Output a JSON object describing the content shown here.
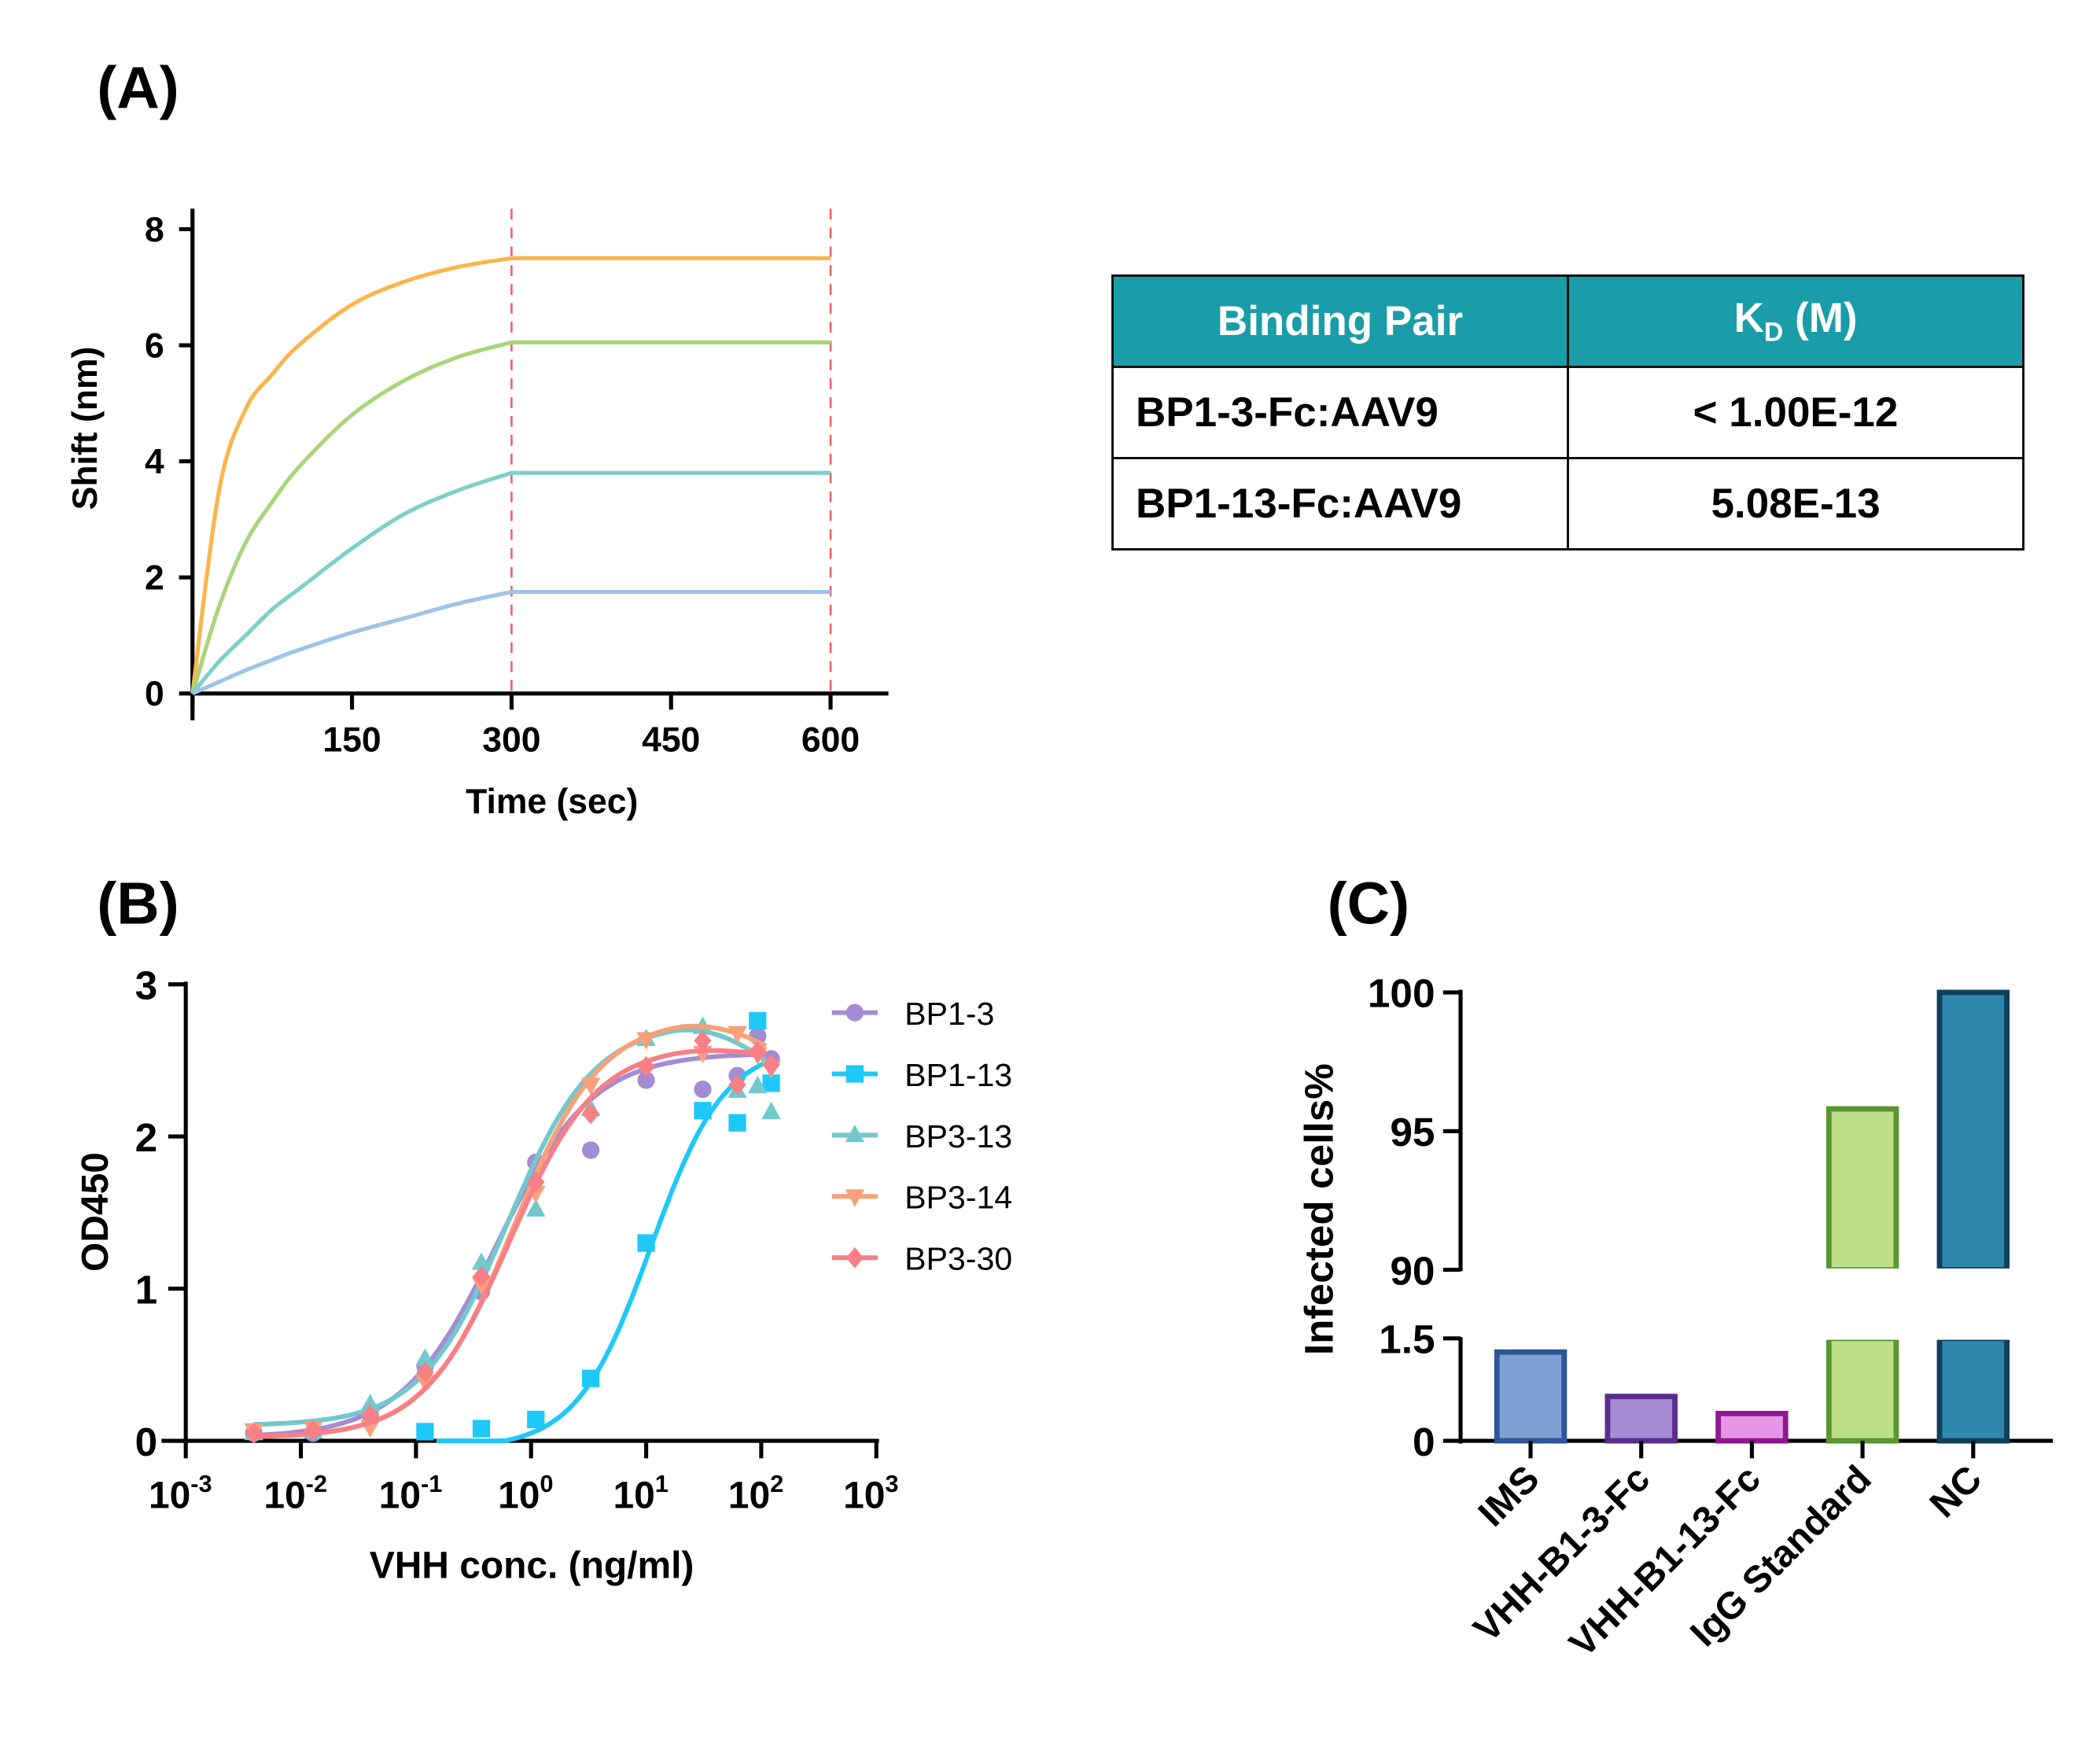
{
  "panels": {
    "a": "(A)",
    "b": "(B)",
    "c": "(C)"
  },
  "table": {
    "header": {
      "col1": "Binding Pair",
      "col2_main": "K",
      "col2_sub": "D",
      "col2_unit": " (M)"
    },
    "rows": [
      {
        "pair": "BP1-3-Fc:AAV9",
        "kd": "< 1.00E-12"
      },
      {
        "pair": "BP1-13-Fc:AAV9",
        "kd": "5.08E-13"
      }
    ],
    "header_color": "#1A9DA8"
  },
  "chart_data": [
    {
      "type": "line",
      "xlabel": "Time (sec)",
      "ylabel": "Shift (nm)",
      "xlim": [
        0,
        650
      ],
      "ylim": [
        0,
        8
      ],
      "xticks": [
        "150",
        "300",
        "450",
        "600"
      ],
      "yticks": [
        "0",
        "2",
        "4",
        "6",
        "8"
      ],
      "reference_lines_x": [
        300,
        600
      ],
      "reference_line_color": "#F06060",
      "x": [
        0,
        25,
        50,
        75,
        100,
        150,
        200,
        250,
        300,
        600
      ],
      "series": [
        {
          "color": "#F9B54C",
          "values": [
            0,
            3.5,
            4.9,
            5.5,
            6.0,
            6.7,
            7.1,
            7.35,
            7.5,
            7.5
          ]
        },
        {
          "color": "#A9D57A",
          "values": [
            0,
            1.5,
            2.6,
            3.3,
            3.9,
            4.8,
            5.4,
            5.8,
            6.05,
            6.05
          ]
        },
        {
          "color": "#7DCFCB",
          "values": [
            0,
            0.55,
            1.0,
            1.45,
            1.8,
            2.5,
            3.1,
            3.5,
            3.8,
            3.8
          ]
        },
        {
          "color": "#9DC3E6",
          "values": [
            0,
            0.2,
            0.4,
            0.58,
            0.75,
            1.05,
            1.3,
            1.55,
            1.75,
            1.75
          ]
        }
      ]
    },
    {
      "type": "scatter",
      "xlabel": "VHH conc. (ng/ml)",
      "ylabel": "OD450",
      "xscale": "log",
      "xlim": [
        0.001,
        1000
      ],
      "ylim": [
        0,
        3
      ],
      "xticks": [
        {
          "base": "10",
          "exp": "-3"
        },
        {
          "base": "10",
          "exp": "-2"
        },
        {
          "base": "10",
          "exp": "-1"
        },
        {
          "base": "10",
          "exp": "0"
        },
        {
          "base": "10",
          "exp": "1"
        },
        {
          "base": "10",
          "exp": "2"
        },
        {
          "base": "10",
          "exp": "3"
        }
      ],
      "yticks": [
        "0",
        "1",
        "2",
        "3"
      ],
      "legend": "right",
      "x": [
        0.0039,
        0.0128,
        0.04,
        0.12,
        0.37,
        1.1,
        3.3,
        10,
        31,
        62,
        93,
        122
      ],
      "series": [
        {
          "name": "BP1-3",
          "color": "#A48BD2",
          "marker": "circle",
          "values": [
            0.05,
            0.05,
            0.17,
            0.49,
            0.98,
            1.83,
            1.91,
            2.37,
            2.31,
            2.4,
            2.66,
            2.51
          ]
        },
        {
          "name": "BP1-13",
          "color": "#1EC8F8",
          "marker": "square",
          "values": [
            null,
            null,
            null,
            0.06,
            0.08,
            0.14,
            0.41,
            1.3,
            2.17,
            2.09,
            2.76,
            2.35
          ]
        },
        {
          "name": "BP3-13",
          "color": "#72C8CC",
          "marker": "triangle-up",
          "values": [
            0.05,
            0.06,
            0.24,
            0.54,
            1.17,
            1.52,
            2.18,
            2.64,
            2.72,
            2.3,
            2.33,
            2.16
          ]
        },
        {
          "name": "BP3-14",
          "color": "#F8A07A",
          "marker": "triangle-down",
          "values": [
            0.07,
            0.08,
            0.09,
            0.39,
            1.03,
            1.63,
            2.34,
            2.64,
            2.55,
            2.68,
            2.54,
            2.45
          ]
        },
        {
          "name": "BP3-30",
          "color": "#F77F85",
          "marker": "diamond",
          "values": [
            0.05,
            0.07,
            0.17,
            0.45,
            1.08,
            1.7,
            2.15,
            2.46,
            2.63,
            2.34,
            2.56,
            2.47
          ]
        }
      ]
    },
    {
      "type": "bar",
      "ylabel": "Infected cells%",
      "axis_break": true,
      "ylim_lower": [
        0,
        1.5
      ],
      "ylim_upper": [
        90,
        100
      ],
      "yticks_lower": [
        "0",
        "1.5"
      ],
      "yticks_upper": [
        "90",
        "95",
        "100"
      ],
      "categories": [
        "IMS",
        "VHH-B1-3-Fc",
        "VHH-B1-13-Fc",
        "IgG Standard",
        "NC"
      ],
      "values": [
        1.3,
        0.65,
        0.4,
        95.8,
        100
      ],
      "fill_colors": [
        "#7EA1D4",
        "#A48BD2",
        "#E696E6",
        "#BCE08A",
        "#2E88AE"
      ],
      "edge_colors": [
        "#2E5597",
        "#5A2E8C",
        "#8E1A8E",
        "#5A9630",
        "#10405A"
      ]
    }
  ]
}
